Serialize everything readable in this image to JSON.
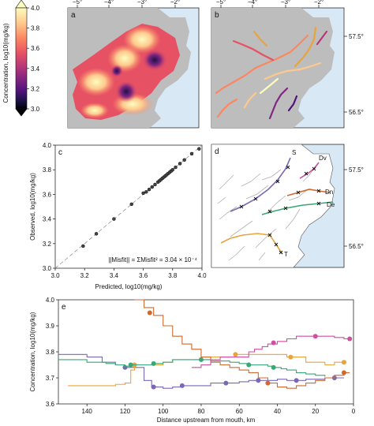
{
  "colorbar": {
    "label": "Concentration, log10(mg/kg)",
    "ticks": [
      "4.0",
      "3.8",
      "3.6",
      "3.4",
      "3.2",
      "3.0"
    ],
    "colors": [
      "#fcfdbf",
      "#fec98d",
      "#fb8761",
      "#e65164",
      "#b73779",
      "#822681",
      "#51127c",
      "#1d1147",
      "#000004"
    ]
  },
  "maps": {
    "lon_ticks": [
      "−5°",
      "−4°",
      "−3°",
      "−2°"
    ],
    "lat_ticks": [
      "57.5°",
      "56.5°"
    ],
    "land_color": "#bdbdbd",
    "sea_color": "#d9e8f5"
  },
  "panel_labels": {
    "a": "a",
    "b": "b",
    "c": "c",
    "d": "d",
    "e": "e"
  },
  "panel_d": {
    "river_labels": [
      "S",
      "Dv",
      "Dn",
      "De",
      "T"
    ]
  },
  "chart_data": [
    {
      "panel": "c",
      "type": "scatter",
      "xlabel": "Predicted, log10(mg/kg)",
      "ylabel": "Observed, log10(mg/kg)",
      "xlim": [
        3.0,
        4.0
      ],
      "ylim": [
        3.0,
        4.0
      ],
      "x_ticks": [
        "3.0",
        "3.2",
        "3.4",
        "3.6",
        "3.8",
        "4.0"
      ],
      "y_ticks": [
        "3.0",
        "3.2",
        "3.4",
        "3.6",
        "3.8",
        "4.0"
      ],
      "annotation": "||Misfit|| = ΣMisfit² = 3.04 × 10⁻⁴",
      "x": [
        3.19,
        3.28,
        3.4,
        3.52,
        3.6,
        3.62,
        3.64,
        3.66,
        3.68,
        3.7,
        3.71,
        3.72,
        3.73,
        3.74,
        3.75,
        3.76,
        3.77,
        3.78,
        3.79,
        3.8,
        3.82,
        3.85,
        3.88,
        3.93,
        3.98
      ],
      "y": [
        3.18,
        3.28,
        3.4,
        3.52,
        3.61,
        3.62,
        3.64,
        3.66,
        3.68,
        3.7,
        3.71,
        3.72,
        3.73,
        3.74,
        3.75,
        3.76,
        3.77,
        3.78,
        3.79,
        3.8,
        3.82,
        3.85,
        3.88,
        3.93,
        3.97
      ]
    },
    {
      "panel": "e",
      "type": "line",
      "xlabel": "Distance upstream from mouth, km",
      "ylabel": "Concentration, log10(mg/kg)",
      "xlim": [
        155,
        0
      ],
      "ylim": [
        3.6,
        4.0
      ],
      "x_ticks": [
        "140",
        "120",
        "100",
        "80",
        "60",
        "40",
        "20",
        "0"
      ],
      "y_ticks": [
        "3.6",
        "3.7",
        "3.8",
        "3.9",
        "4.0"
      ],
      "series": [
        {
          "color": "#7b68b5",
          "x": [
            155,
            140,
            132,
            125,
            120,
            117,
            110,
            106,
            100,
            95,
            90,
            85,
            80,
            75,
            70,
            65,
            60,
            55,
            50,
            45,
            40,
            35,
            30,
            25,
            20,
            15,
            10,
            5
          ],
          "y": [
            3.79,
            3.78,
            3.76,
            3.75,
            3.74,
            3.74,
            3.69,
            3.665,
            3.66,
            3.665,
            3.67,
            3.67,
            3.67,
            3.68,
            3.68,
            3.68,
            3.685,
            3.69,
            3.69,
            3.69,
            3.695,
            3.69,
            3.69,
            3.695,
            3.695,
            3.7,
            3.7,
            3.7
          ],
          "markers_x": [
            120,
            105,
            90,
            67,
            50,
            30,
            10
          ],
          "markers_y": [
            3.74,
            3.665,
            3.67,
            3.68,
            3.69,
            3.69,
            3.7
          ]
        },
        {
          "color": "#e8a33d",
          "x": [
            150,
            140,
            130,
            125,
            120,
            117,
            115,
            110,
            100,
            95,
            90,
            80,
            75,
            70,
            62,
            58,
            55,
            50,
            45,
            40,
            35,
            30,
            25,
            20,
            15,
            10,
            5
          ],
          "y": [
            3.67,
            3.67,
            3.67,
            3.675,
            3.68,
            3.73,
            3.75,
            3.75,
            3.76,
            3.77,
            3.77,
            3.77,
            3.78,
            3.78,
            3.79,
            3.79,
            3.79,
            3.79,
            3.79,
            3.79,
            3.78,
            3.78,
            3.76,
            3.76,
            3.75,
            3.76,
            3.76
          ],
          "markers_x": [
            115,
            62,
            33,
            5
          ],
          "markers_y": [
            3.75,
            3.79,
            3.78,
            3.76
          ]
        },
        {
          "color": "#3aa776",
          "x": [
            155,
            140,
            130,
            125,
            120,
            117,
            112,
            108,
            105,
            100,
            95,
            90,
            85,
            80,
            75,
            70,
            65,
            60,
            55,
            50,
            45,
            42,
            38,
            35,
            30,
            25,
            20,
            15
          ],
          "y": [
            3.77,
            3.76,
            3.755,
            3.75,
            3.745,
            3.75,
            3.75,
            3.75,
            3.755,
            3.76,
            3.77,
            3.77,
            3.77,
            3.77,
            3.765,
            3.765,
            3.76,
            3.755,
            3.75,
            3.75,
            3.745,
            3.74,
            3.735,
            3.73,
            3.72,
            3.715,
            3.71,
            3.705
          ],
          "markers_x": [
            117,
            105,
            80,
            55,
            42
          ],
          "markers_y": [
            3.75,
            3.755,
            3.77,
            3.75,
            3.74
          ]
        },
        {
          "color": "#d1692e",
          "x": [
            115,
            110,
            105,
            100,
            95,
            90,
            85,
            80,
            75,
            70,
            65,
            60,
            55,
            50,
            45,
            40,
            35,
            30,
            25,
            20,
            15,
            10,
            5,
            2
          ],
          "y": [
            4.0,
            3.97,
            3.94,
            3.9,
            3.86,
            3.83,
            3.81,
            3.78,
            3.76,
            3.75,
            3.74,
            3.73,
            3.72,
            3.7,
            3.68,
            3.665,
            3.66,
            3.67,
            3.68,
            3.69,
            3.7,
            3.71,
            3.72,
            3.72
          ],
          "markers_x": [
            107,
            45,
            5
          ],
          "markers_y": [
            3.95,
            3.68,
            3.72
          ]
        },
        {
          "color": "#d04fa0",
          "x": [
            85,
            80,
            75,
            70,
            65,
            60,
            55,
            52,
            48,
            45,
            40,
            35,
            30,
            25,
            20,
            15,
            10,
            5,
            2
          ],
          "y": [
            3.74,
            3.75,
            3.77,
            3.78,
            3.78,
            3.78,
            3.8,
            3.81,
            3.82,
            3.83,
            3.84,
            3.85,
            3.86,
            3.86,
            3.86,
            3.86,
            3.855,
            3.85,
            3.85
          ],
          "markers_x": [
            42,
            20,
            2
          ],
          "markers_y": [
            3.835,
            3.86,
            3.85
          ]
        }
      ]
    }
  ]
}
